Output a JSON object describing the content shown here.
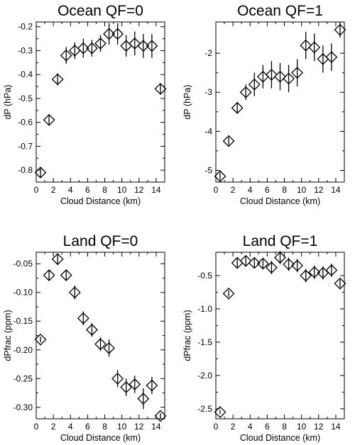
{
  "chart_data": [
    {
      "type": "scatter",
      "title": "Ocean QF=0",
      "xlabel": "Cloud Distance (km)",
      "ylabel": "dP (hPa)",
      "xlim": [
        0,
        15
      ],
      "ylim": [
        -0.85,
        -0.18
      ],
      "xticks": [
        0,
        2,
        4,
        6,
        8,
        10,
        12,
        14
      ],
      "yticks": [
        -0.8,
        -0.7,
        -0.6,
        -0.5,
        -0.4,
        -0.3,
        -0.2
      ],
      "ytick_labels": [
        "-0.8",
        "-0.7",
        "-0.6",
        "-0.5",
        "-0.4",
        "-0.3",
        "-0.2"
      ],
      "x": [
        0.5,
        1.5,
        2.5,
        3.5,
        4.5,
        5.5,
        6.5,
        7.5,
        8.5,
        9.5,
        10.5,
        11.5,
        12.5,
        13.5,
        14.5
      ],
      "y": [
        -0.81,
        -0.59,
        -0.42,
        -0.32,
        -0.3,
        -0.29,
        -0.29,
        -0.27,
        -0.23,
        -0.23,
        -0.28,
        -0.27,
        -0.28,
        -0.28,
        -0.46
      ],
      "err": [
        0.02,
        0.02,
        0.025,
        0.035,
        0.035,
        0.04,
        0.035,
        0.035,
        0.045,
        0.045,
        0.045,
        0.05,
        0.05,
        0.05,
        0.02
      ]
    },
    {
      "type": "scatter",
      "title": "Ocean QF=1",
      "xlabel": "Cloud Distance (km)",
      "ylabel": "dP (hPa)",
      "xlim": [
        0,
        15
      ],
      "ylim": [
        -5.3,
        -1.2
      ],
      "xticks": [
        0,
        2,
        4,
        6,
        8,
        10,
        12,
        14
      ],
      "yticks": [
        -5,
        -4,
        -3,
        -2
      ],
      "ytick_labels": [
        "-5",
        "-4",
        "-3",
        "-2"
      ],
      "x": [
        0.5,
        1.5,
        2.5,
        3.5,
        4.5,
        5.5,
        6.5,
        7.5,
        8.5,
        9.5,
        10.5,
        11.5,
        12.5,
        13.5,
        14.5
      ],
      "y": [
        -5.15,
        -4.25,
        -3.4,
        -3.0,
        -2.8,
        -2.6,
        -2.55,
        -2.6,
        -2.65,
        -2.5,
        -1.8,
        -1.85,
        -2.15,
        -2.1,
        -1.4
      ],
      "err": [
        0.1,
        0.1,
        0.15,
        0.2,
        0.3,
        0.3,
        0.35,
        0.35,
        0.35,
        0.35,
        0.35,
        0.35,
        0.35,
        0.35,
        0.2
      ]
    },
    {
      "type": "scatter",
      "title": "Land QF=0",
      "xlabel": "Cloud Distance (km)",
      "ylabel": "dPfrac (ppm)",
      "xlim": [
        0,
        15
      ],
      "ylim": [
        -0.32,
        -0.03
      ],
      "xticks": [
        0,
        2,
        4,
        6,
        8,
        10,
        12,
        14
      ],
      "yticks": [
        -0.3,
        -0.25,
        -0.2,
        -0.15,
        -0.1,
        -0.05
      ],
      "ytick_labels": [
        "-0.30",
        "-0.25",
        "-0.20",
        "-0.15",
        "-0.10",
        "-0.05"
      ],
      "x": [
        0.5,
        1.5,
        2.5,
        3.5,
        4.5,
        5.5,
        6.5,
        7.5,
        8.5,
        9.5,
        10.5,
        11.5,
        12.5,
        13.5,
        14.5
      ],
      "y": [
        -0.182,
        -0.07,
        -0.042,
        -0.07,
        -0.1,
        -0.145,
        -0.165,
        -0.19,
        -0.197,
        -0.25,
        -0.265,
        -0.26,
        -0.285,
        -0.262,
        -0.315
      ],
      "err": [
        0.005,
        0.01,
        0.01,
        0.01,
        0.012,
        0.012,
        0.012,
        0.012,
        0.015,
        0.015,
        0.015,
        0.015,
        0.018,
        0.015,
        0.005
      ]
    },
    {
      "type": "scatter",
      "title": "Land QF=1",
      "xlabel": "Cloud Distance (km)",
      "ylabel": "dPfrac (ppm)",
      "xlim": [
        0,
        15
      ],
      "ylim": [
        -2.65,
        -0.15
      ],
      "xticks": [
        0,
        2,
        4,
        6,
        8,
        10,
        12,
        14
      ],
      "yticks": [
        -2.5,
        -2.0,
        -1.5,
        -1.0,
        -0.5
      ],
      "ytick_labels": [
        "-2.5",
        "-2.0",
        "-1.5",
        "-1.0",
        "-0.5"
      ],
      "x": [
        0.5,
        1.5,
        2.5,
        3.5,
        4.5,
        5.5,
        6.5,
        7.5,
        8.5,
        9.5,
        10.5,
        11.5,
        12.5,
        13.5,
        14.5
      ],
      "y": [
        -2.55,
        -0.77,
        -0.31,
        -0.28,
        -0.31,
        -0.32,
        -0.38,
        -0.23,
        -0.33,
        -0.35,
        -0.5,
        -0.45,
        -0.46,
        -0.42,
        -0.62
      ],
      "err": [
        0.03,
        0.05,
        0.08,
        0.08,
        0.08,
        0.08,
        0.1,
        0.1,
        0.1,
        0.1,
        0.1,
        0.1,
        0.1,
        0.1,
        0.06
      ]
    }
  ]
}
